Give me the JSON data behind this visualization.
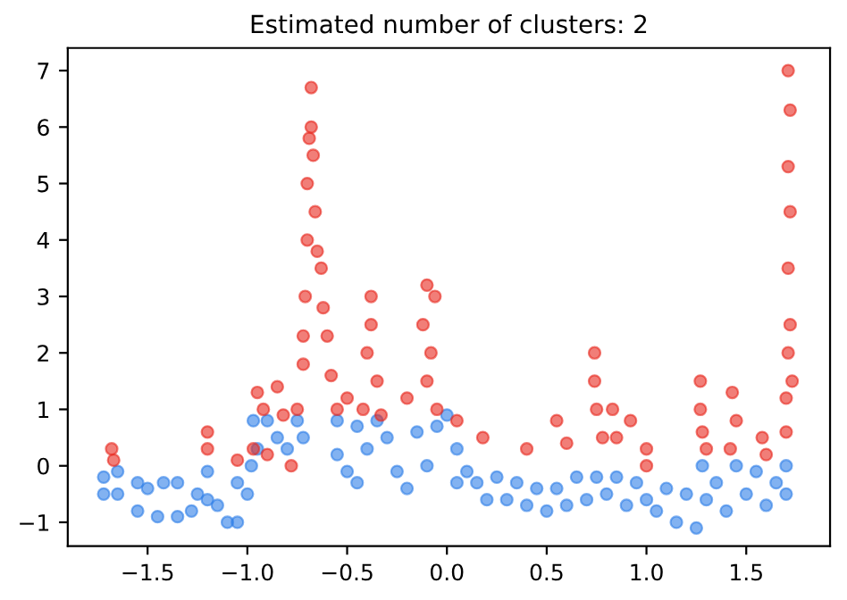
{
  "chart_data": {
    "type": "scatter",
    "title": "Estimated number of clusters: 2",
    "xlim": [
      -1.9,
      1.92
    ],
    "ylim": [
      -1.42,
      7.4
    ],
    "xticks": [
      {
        "value": -1.5,
        "label": "−1.5"
      },
      {
        "value": -1.0,
        "label": "−1.0"
      },
      {
        "value": -0.5,
        "label": "−0.5"
      },
      {
        "value": 0.0,
        "label": "0.0"
      },
      {
        "value": 0.5,
        "label": "0.5"
      },
      {
        "value": 1.0,
        "label": "1.0"
      },
      {
        "value": 1.5,
        "label": "1.5"
      }
    ],
    "yticks": [
      {
        "value": -1,
        "label": "−1"
      },
      0,
      1,
      2,
      3,
      4,
      5,
      6,
      7
    ],
    "grid": false,
    "legend": false,
    "marker": "circle",
    "series": [
      {
        "color": "#2f7fe8",
        "x": [
          -1.72,
          -1.72,
          -1.65,
          -1.65,
          -1.55,
          -1.55,
          -1.5,
          -1.45,
          -1.42,
          -1.35,
          -1.35,
          -1.28,
          -1.25,
          -1.2,
          -1.2,
          -1.15,
          -1.1,
          -1.05,
          -1.05,
          -1.0,
          -0.98,
          -0.97,
          -0.95,
          -0.9,
          -0.85,
          -0.8,
          -0.75,
          -0.72,
          -0.55,
          -0.55,
          -0.5,
          -0.45,
          -0.45,
          -0.4,
          -0.35,
          -0.3,
          -0.25,
          -0.2,
          -0.15,
          -0.1,
          -0.05,
          0.0,
          0.05,
          0.05,
          0.1,
          0.15,
          0.2,
          0.25,
          0.3,
          0.35,
          0.4,
          0.45,
          0.5,
          0.55,
          0.6,
          0.65,
          0.7,
          0.75,
          0.8,
          0.85,
          0.9,
          0.95,
          1.0,
          1.05,
          1.1,
          1.15,
          1.2,
          1.25,
          1.28,
          1.3,
          1.35,
          1.4,
          1.45,
          1.5,
          1.55,
          1.6,
          1.65,
          1.7,
          1.7
        ],
        "values": [
          -0.2,
          -0.5,
          -0.1,
          -0.5,
          -0.3,
          -0.8,
          -0.4,
          -0.9,
          -0.3,
          -0.9,
          -0.3,
          -0.8,
          -0.5,
          -0.1,
          -0.6,
          -0.7,
          -1.0,
          -1.0,
          -0.3,
          -0.5,
          0.0,
          0.8,
          0.3,
          0.8,
          0.5,
          0.3,
          0.8,
          0.5,
          0.8,
          0.2,
          -0.1,
          0.7,
          -0.3,
          0.3,
          0.8,
          0.5,
          -0.1,
          -0.4,
          0.6,
          0.0,
          0.7,
          0.9,
          0.3,
          -0.3,
          -0.1,
          -0.3,
          -0.6,
          -0.2,
          -0.6,
          -0.3,
          -0.7,
          -0.4,
          -0.8,
          -0.4,
          -0.7,
          -0.2,
          -0.6,
          -0.2,
          -0.5,
          -0.2,
          -0.7,
          -0.3,
          -0.6,
          -0.8,
          -0.4,
          -1.0,
          -0.5,
          -1.1,
          0.0,
          -0.6,
          -0.3,
          -0.8,
          0.0,
          -0.5,
          -0.1,
          -0.7,
          -0.3,
          -0.5,
          0.0
        ]
      },
      {
        "color": "#e8281e",
        "x": [
          -1.68,
          -1.67,
          -1.2,
          -1.2,
          -1.05,
          -0.97,
          -0.95,
          -0.92,
          -0.9,
          -0.85,
          -0.82,
          -0.78,
          -0.75,
          -0.72,
          -0.72,
          -0.71,
          -0.7,
          -0.7,
          -0.69,
          -0.68,
          -0.68,
          -0.67,
          -0.66,
          -0.65,
          -0.63,
          -0.62,
          -0.6,
          -0.58,
          -0.55,
          -0.5,
          -0.42,
          -0.4,
          -0.38,
          -0.38,
          -0.35,
          -0.33,
          -0.2,
          -0.12,
          -0.1,
          -0.1,
          -0.08,
          -0.06,
          -0.05,
          0.05,
          0.18,
          0.4,
          0.55,
          0.6,
          0.74,
          0.74,
          0.75,
          0.78,
          0.83,
          0.85,
          0.92,
          1.0,
          1.0,
          1.27,
          1.27,
          1.28,
          1.3,
          1.43,
          1.45,
          1.42,
          1.58,
          1.6,
          1.7,
          1.7,
          1.71,
          1.71,
          1.72,
          1.71,
          1.72,
          1.71,
          1.72,
          1.73
        ],
        "values": [
          0.3,
          0.1,
          0.6,
          0.3,
          0.1,
          0.3,
          1.3,
          1.0,
          0.2,
          1.4,
          0.9,
          0.0,
          1.0,
          1.8,
          2.3,
          3.0,
          4.0,
          5.0,
          5.8,
          6.7,
          6.0,
          5.5,
          4.5,
          3.8,
          3.5,
          2.8,
          2.3,
          1.6,
          1.0,
          1.2,
          1.0,
          2.0,
          2.5,
          3.0,
          1.5,
          0.9,
          1.2,
          2.5,
          3.2,
          1.5,
          2.0,
          3.0,
          1.0,
          0.8,
          0.5,
          0.3,
          0.8,
          0.4,
          2.0,
          1.5,
          1.0,
          0.5,
          1.0,
          0.5,
          0.8,
          0.3,
          0.0,
          1.5,
          1.0,
          0.6,
          0.3,
          1.3,
          0.8,
          0.3,
          0.5,
          0.2,
          0.6,
          1.2,
          2.0,
          3.5,
          4.5,
          5.3,
          6.3,
          7.0,
          2.5,
          1.5
        ]
      }
    ]
  }
}
